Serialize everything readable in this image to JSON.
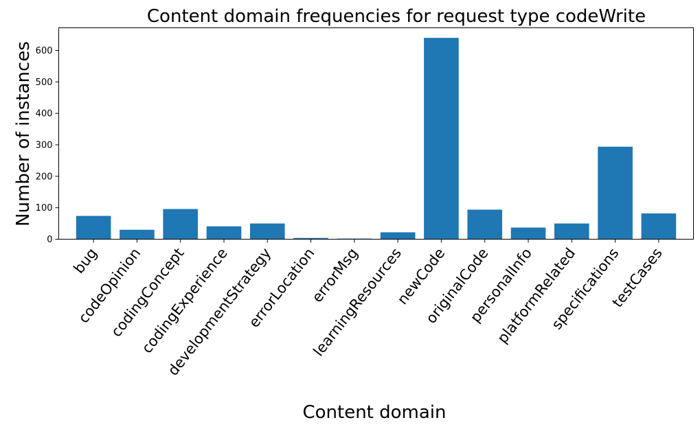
{
  "chart_data": {
    "type": "bar",
    "title": "Content domain frequencies for request type codeWrite",
    "xlabel": "Content domain",
    "ylabel": "Number of instances",
    "categories": [
      "bug",
      "codeOpinion",
      "codingConcept",
      "codingExperience",
      "developmentStrategy",
      "errorLocation",
      "errorMsg",
      "learningResources",
      "newCode",
      "originalCode",
      "personalInfo",
      "platformRelated",
      "specifications",
      "testCases"
    ],
    "values": [
      74,
      30,
      96,
      41,
      50,
      4,
      2,
      22,
      640,
      94,
      37,
      50,
      294,
      82
    ],
    "ylim": [
      0,
      672
    ],
    "yticks": [
      0,
      100,
      200,
      300,
      400,
      500,
      600
    ],
    "bar_color": "#1f77b4",
    "grid": false,
    "legend": "none"
  }
}
